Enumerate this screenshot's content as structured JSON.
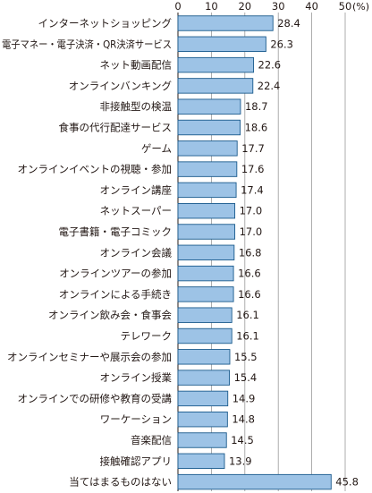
{
  "chart_data": {
    "type": "bar",
    "orientation": "horizontal",
    "unit": "(%)",
    "xlim": [
      0,
      50
    ],
    "ticks": [
      0,
      10,
      20,
      30,
      40,
      50
    ],
    "grid": true,
    "bar_color": "#9dc3e6",
    "bar_edge_color": "#1a5a8c",
    "categories": [
      "インターネットショッピング",
      "電子マネー・電子決済・QR決済サービス",
      "ネット動画配信",
      "オンラインバンキング",
      "非接触型の検温",
      "食事の代行配達サービス",
      "ゲーム",
      "オンラインイベントの視聴・参加",
      "オンライン講座",
      "ネットスーパー",
      "電子書籍・電子コミック",
      "オンライン会議",
      "オンラインツアーの参加",
      "オンラインによる手続き",
      "オンライン飲み会・食事会",
      "テレワーク",
      "オンラインセミナーや展示会の参加",
      "オンライン授業",
      "オンラインでの研修や教育の受講",
      "ワーケーション",
      "音楽配信",
      "接触確認アプリ",
      "当てはまるものはない"
    ],
    "values": [
      28.4,
      26.3,
      22.6,
      22.4,
      18.7,
      18.6,
      17.7,
      17.6,
      17.4,
      17.0,
      17.0,
      16.8,
      16.6,
      16.6,
      16.1,
      16.1,
      15.5,
      15.4,
      14.9,
      14.8,
      14.5,
      13.9,
      45.8
    ],
    "value_labels": [
      "28.4",
      "26.3",
      "22.6",
      "22.4",
      "18.7",
      "18.6",
      "17.7",
      "17.6",
      "17.4",
      "17.0",
      "17.0",
      "16.8",
      "16.6",
      "16.6",
      "16.1",
      "16.1",
      "15.5",
      "15.4",
      "14.9",
      "14.8",
      "14.5",
      "13.9",
      "45.8"
    ]
  }
}
